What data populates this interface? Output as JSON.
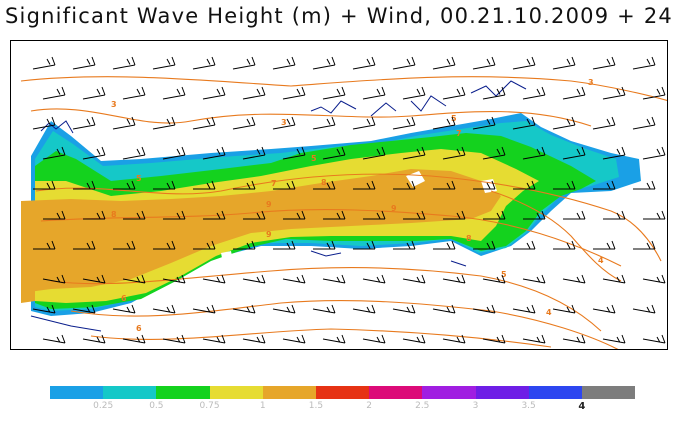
{
  "title": "Significant Wave Height (m) + Wind, 00.21.10.2009 + 24",
  "legend": {
    "colors": [
      "#1aa0e6",
      "#15c8c8",
      "#14d21e",
      "#e6dc32",
      "#e6a62a",
      "#e63214",
      "#dc0a78",
      "#a01ee1",
      "#6e1ee6",
      "#2d46f0",
      "#7d7d7d"
    ],
    "labels": [
      "0.25",
      "0.5",
      "0.75",
      "1",
      "1.5",
      "2",
      "2.5",
      "3",
      "3.5",
      "4"
    ],
    "bold_label": "4"
  },
  "contour_labels": [
    "3",
    "5",
    "7",
    "8",
    "9",
    "6",
    "4"
  ],
  "colors": {
    "contour": "#e87a1e",
    "coast": "#0a1e8c",
    "barb": "#000000"
  }
}
